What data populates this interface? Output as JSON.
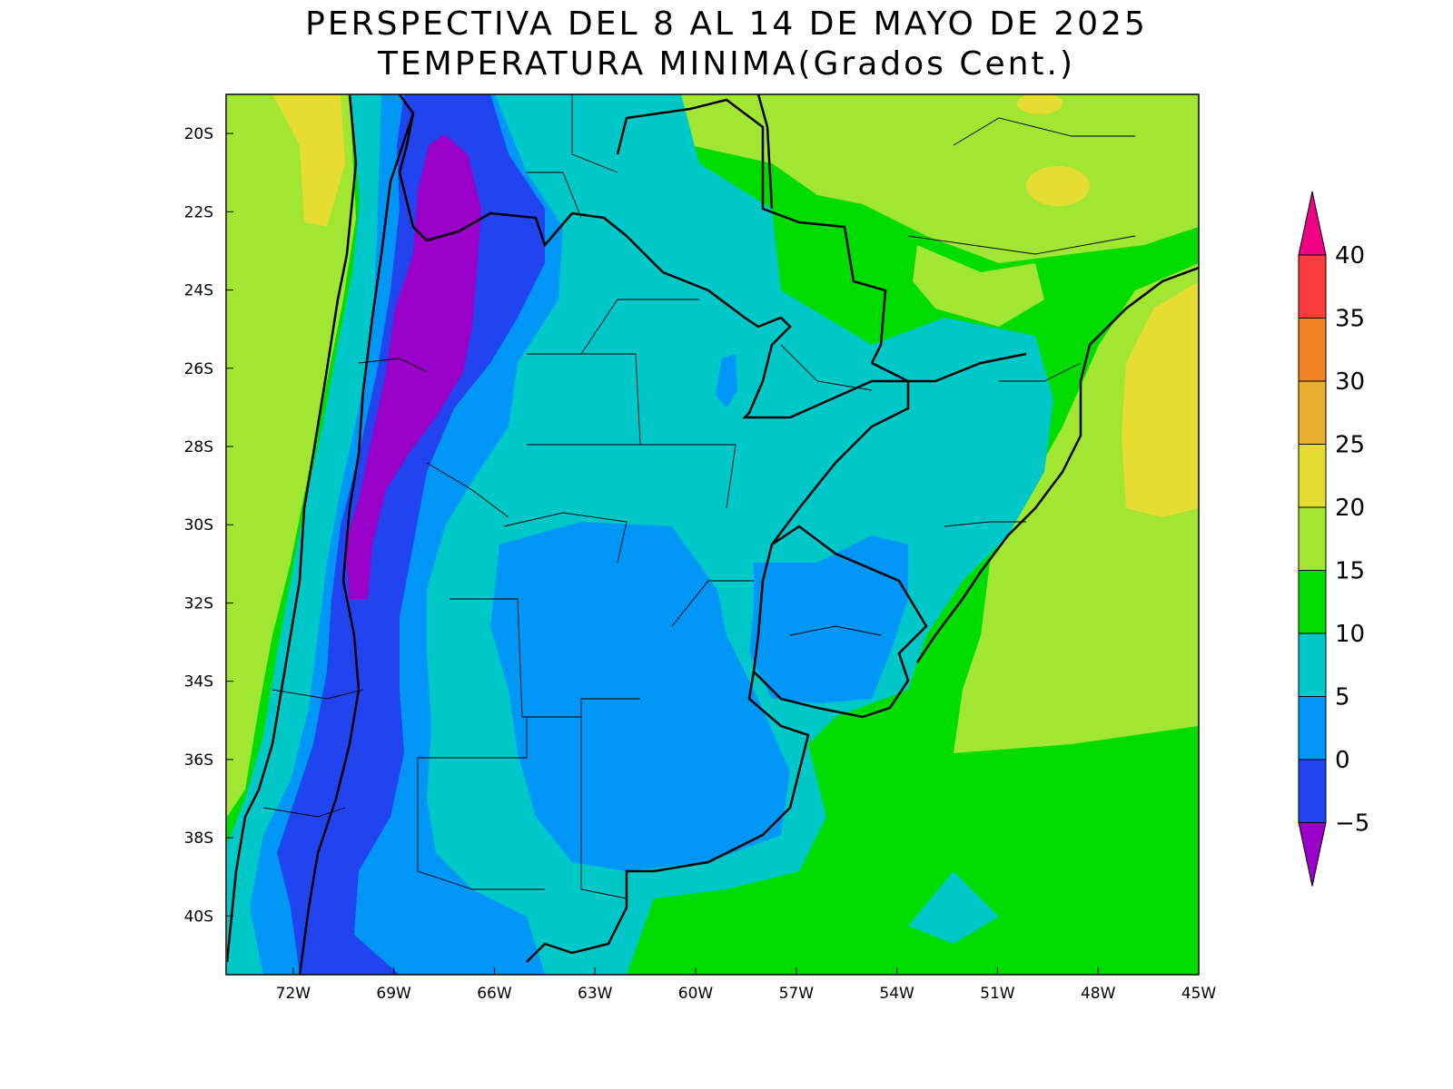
{
  "map": {
    "title_line1": "PERSPECTIVA DEL 8 AL 14 DE MAYO DE 2025",
    "title_line2": "TEMPERATURA MINIMA(Grados Cent.)",
    "latitude_labels": [
      "20S",
      "22S",
      "24S",
      "26S",
      "28S",
      "30S",
      "32S",
      "34S",
      "36S",
      "38S",
      "40S"
    ],
    "longitude_labels": [
      "72W",
      "69W",
      "66W",
      "63W",
      "60W",
      "57W",
      "54W",
      "51W",
      "48W",
      "45W"
    ],
    "extent": {
      "lon_min": -74.0,
      "lon_max": -45.0,
      "lat_min": -41.5,
      "lat_max": -19.0
    }
  },
  "legend": {
    "labels": [
      "−5",
      "0",
      "5",
      "10",
      "15",
      "20",
      "25",
      "30",
      "35",
      "40"
    ],
    "bins": [
      {
        "range": "< -5",
        "color": "#9900c8"
      },
      {
        "range": "-5 to 0",
        "color": "#2244ee"
      },
      {
        "range": "0 to 5",
        "color": "#0096f5"
      },
      {
        "range": "5 to 10",
        "color": "#00c8c8"
      },
      {
        "range": "10 to 15",
        "color": "#00dc00"
      },
      {
        "range": "15 to 20",
        "color": "#a0e632"
      },
      {
        "range": "20 to 25",
        "color": "#e6dc32"
      },
      {
        "range": "25 to 30",
        "color": "#e6af2d"
      },
      {
        "range": "30 to 35",
        "color": "#f08228"
      },
      {
        "range": "35 to 40",
        "color": "#fa3c3c"
      },
      {
        "range": "> 40",
        "color": "#f00082"
      }
    ]
  }
}
